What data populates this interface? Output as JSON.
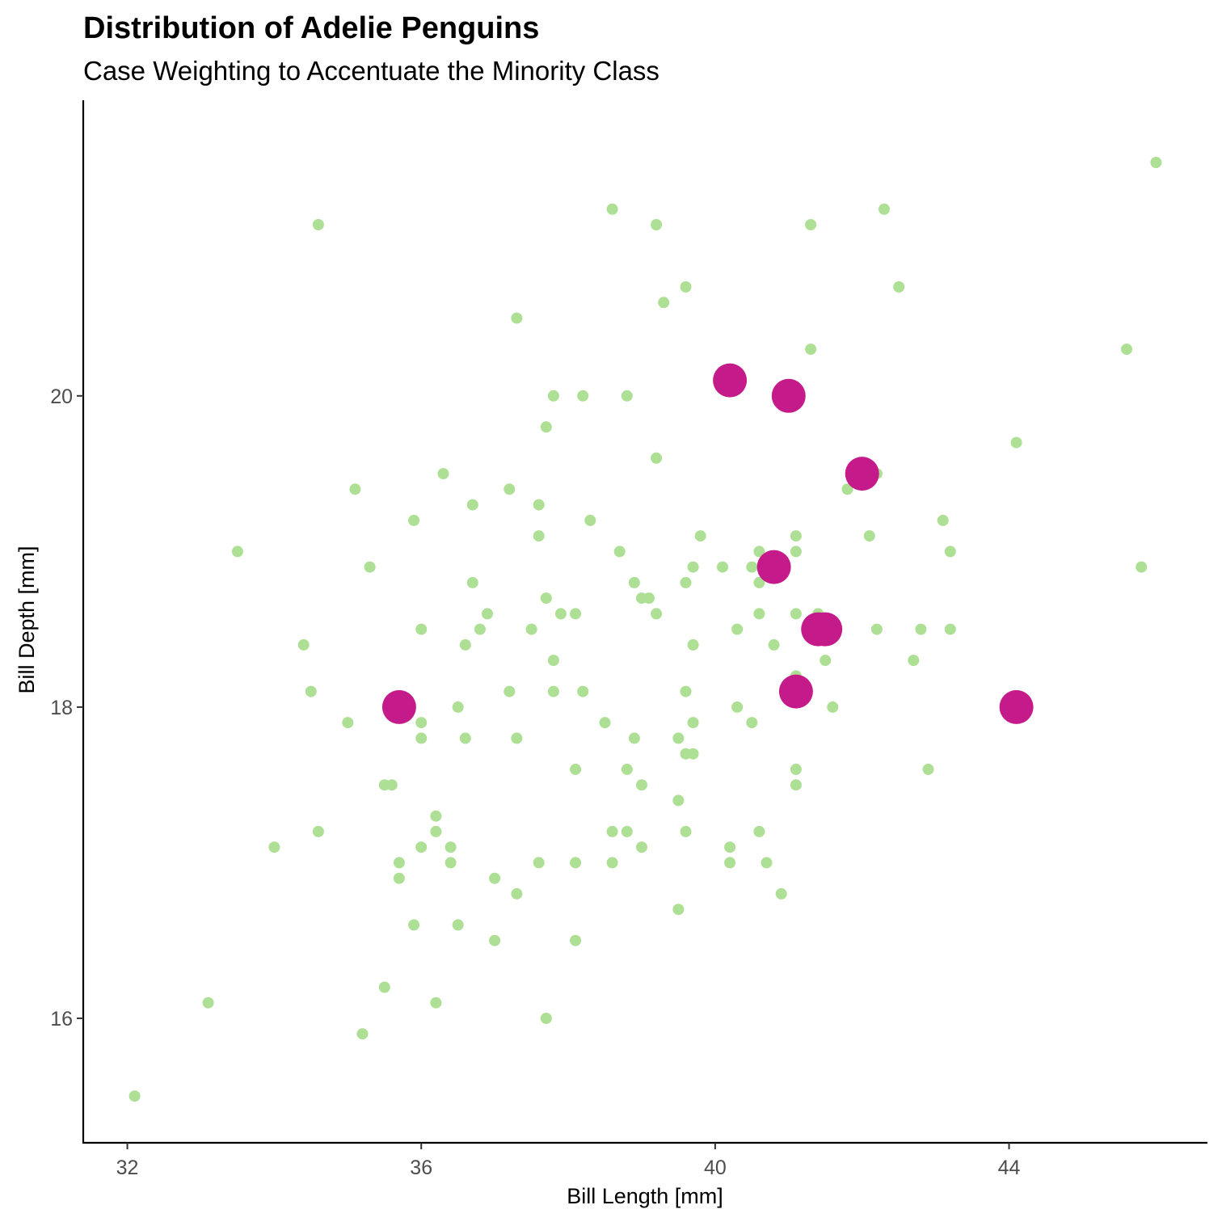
{
  "chart_data": {
    "type": "scatter",
    "title": "Distribution of Adelie Penguins",
    "subtitle": "Case Weighting to Accentuate the Minority Class",
    "xlabel": "Bill Length [mm]",
    "ylabel": "Bill Depth [mm]",
    "xlim": [
      31.4,
      46.7
    ],
    "ylim": [
      15.2,
      21.9
    ],
    "x_ticks": [
      32,
      36,
      40,
      44
    ],
    "y_ticks": [
      16,
      18,
      20
    ],
    "x_tick_labels": [
      "32",
      "36",
      "40",
      "44"
    ],
    "y_tick_labels": [
      "16",
      "18",
      "20"
    ],
    "grid": false,
    "legend": "none",
    "colors": {
      "majority": "#addf94",
      "minority": "#c51b8a"
    },
    "series": [
      {
        "group": "majority",
        "points": [
          [
            32.1,
            15.5
          ],
          [
            33.1,
            16.1
          ],
          [
            33.5,
            19.0
          ],
          [
            34.0,
            17.1
          ],
          [
            34.4,
            18.4
          ],
          [
            34.5,
            18.1
          ],
          [
            34.6,
            21.1
          ],
          [
            34.6,
            17.2
          ],
          [
            35.0,
            17.9
          ],
          [
            35.1,
            19.4
          ],
          [
            35.2,
            15.9
          ],
          [
            35.3,
            18.9
          ],
          [
            35.5,
            16.2
          ],
          [
            35.5,
            17.5
          ],
          [
            35.6,
            17.5
          ],
          [
            35.7,
            16.9
          ],
          [
            35.7,
            17.0
          ],
          [
            35.9,
            19.2
          ],
          [
            35.9,
            16.6
          ],
          [
            36.0,
            18.5
          ],
          [
            36.0,
            17.9
          ],
          [
            36.0,
            17.8
          ],
          [
            36.0,
            17.1
          ],
          [
            36.2,
            17.3
          ],
          [
            36.2,
            17.2
          ],
          [
            36.2,
            16.1
          ],
          [
            36.3,
            19.5
          ],
          [
            36.4,
            17.1
          ],
          [
            36.4,
            17.0
          ],
          [
            36.5,
            18.0
          ],
          [
            36.5,
            16.6
          ],
          [
            36.6,
            18.4
          ],
          [
            36.6,
            17.8
          ],
          [
            36.7,
            19.3
          ],
          [
            36.7,
            18.8
          ],
          [
            36.8,
            18.5
          ],
          [
            36.9,
            18.6
          ],
          [
            37.0,
            16.9
          ],
          [
            37.0,
            16.5
          ],
          [
            37.2,
            19.4
          ],
          [
            37.2,
            18.1
          ],
          [
            37.3,
            20.5
          ],
          [
            37.3,
            17.8
          ],
          [
            37.3,
            16.8
          ],
          [
            37.5,
            18.5
          ],
          [
            37.6,
            19.3
          ],
          [
            37.6,
            19.1
          ],
          [
            37.6,
            17.0
          ],
          [
            37.7,
            19.8
          ],
          [
            37.7,
            18.7
          ],
          [
            37.7,
            16.0
          ],
          [
            37.8,
            20.0
          ],
          [
            37.8,
            18.3
          ],
          [
            37.8,
            18.1
          ],
          [
            37.9,
            18.6
          ],
          [
            38.1,
            18.6
          ],
          [
            38.1,
            17.6
          ],
          [
            38.1,
            17.0
          ],
          [
            38.1,
            16.5
          ],
          [
            38.2,
            20.0
          ],
          [
            38.2,
            18.1
          ],
          [
            38.3,
            19.2
          ],
          [
            38.5,
            17.9
          ],
          [
            38.6,
            21.2
          ],
          [
            38.6,
            17.2
          ],
          [
            38.6,
            17.0
          ],
          [
            38.7,
            19.0
          ],
          [
            38.8,
            20.0
          ],
          [
            38.8,
            17.6
          ],
          [
            38.8,
            17.2
          ],
          [
            38.9,
            18.8
          ],
          [
            38.9,
            17.8
          ],
          [
            39.0,
            18.7
          ],
          [
            39.0,
            17.5
          ],
          [
            39.0,
            17.1
          ],
          [
            39.1,
            18.7
          ],
          [
            39.2,
            21.1
          ],
          [
            39.2,
            19.6
          ],
          [
            39.2,
            18.6
          ],
          [
            39.3,
            20.6
          ],
          [
            39.5,
            17.8
          ],
          [
            39.5,
            17.4
          ],
          [
            39.5,
            16.7
          ],
          [
            39.6,
            20.7
          ],
          [
            39.6,
            18.8
          ],
          [
            39.6,
            18.1
          ],
          [
            39.6,
            17.7
          ],
          [
            39.6,
            17.2
          ],
          [
            39.7,
            18.9
          ],
          [
            39.7,
            18.4
          ],
          [
            39.7,
            17.9
          ],
          [
            39.7,
            17.7
          ],
          [
            39.8,
            19.1
          ],
          [
            40.1,
            18.9
          ],
          [
            40.2,
            17.1
          ],
          [
            40.2,
            17.0
          ],
          [
            40.3,
            18.5
          ],
          [
            40.3,
            18.0
          ],
          [
            40.5,
            18.9
          ],
          [
            40.5,
            17.9
          ],
          [
            40.6,
            19.0
          ],
          [
            40.6,
            18.8
          ],
          [
            40.6,
            18.6
          ],
          [
            40.6,
            17.2
          ],
          [
            40.7,
            17.0
          ],
          [
            40.8,
            18.4
          ],
          [
            40.9,
            16.8
          ],
          [
            41.1,
            19.1
          ],
          [
            41.1,
            19.0
          ],
          [
            41.1,
            18.6
          ],
          [
            41.1,
            18.2
          ],
          [
            41.1,
            17.6
          ],
          [
            41.1,
            17.5
          ],
          [
            41.3,
            21.1
          ],
          [
            41.3,
            20.3
          ],
          [
            41.4,
            18.6
          ],
          [
            41.5,
            18.3
          ],
          [
            41.6,
            18.0
          ],
          [
            41.8,
            19.4
          ],
          [
            42.1,
            19.1
          ],
          [
            42.2,
            19.5
          ],
          [
            42.2,
            18.5
          ],
          [
            42.3,
            21.2
          ],
          [
            42.5,
            20.7
          ],
          [
            42.7,
            18.3
          ],
          [
            42.8,
            18.5
          ],
          [
            42.9,
            17.6
          ],
          [
            43.1,
            19.2
          ],
          [
            43.2,
            19.0
          ],
          [
            43.2,
            18.5
          ],
          [
            44.1,
            19.7
          ],
          [
            45.6,
            20.3
          ],
          [
            45.8,
            18.9
          ],
          [
            46.0,
            21.5
          ]
        ]
      },
      {
        "group": "minority",
        "points": [
          [
            35.7,
            18.0
          ],
          [
            40.2,
            20.1
          ],
          [
            40.8,
            18.9
          ],
          [
            41.0,
            20.0
          ],
          [
            41.1,
            18.1
          ],
          [
            41.4,
            18.5
          ],
          [
            41.5,
            18.5
          ],
          [
            42.0,
            19.5
          ],
          [
            44.1,
            18.0
          ]
        ]
      }
    ]
  }
}
